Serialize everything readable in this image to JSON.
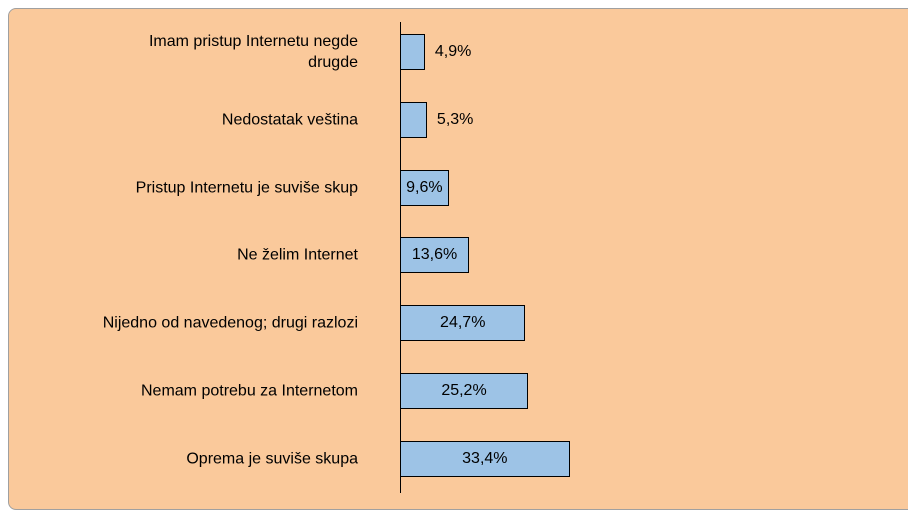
{
  "chart_data": {
    "type": "bar",
    "orientation": "horizontal",
    "categories": [
      "Imam pristup Internetu negde\ndrugde",
      "Nedostatak veština",
      "Pristup Internetu je suviše skup",
      "Ne želim Internet",
      "Nijedno od navedenog; drugi razlozi",
      "Nemam potrebu za Internetom",
      "Oprema je suviše skupa"
    ],
    "values": [
      4.9,
      5.3,
      9.6,
      13.6,
      24.7,
      25.2,
      33.4
    ],
    "value_labels": [
      "4,9%",
      "5,3%",
      "9,6%",
      "13,6%",
      "24,7%",
      "25,2%",
      "33,4%"
    ],
    "color": "#9dc3e6",
    "xlim": [
      0,
      100
    ]
  }
}
